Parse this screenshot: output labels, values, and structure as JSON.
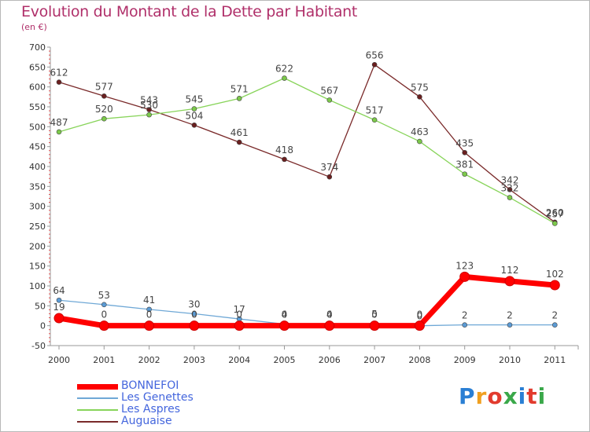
{
  "title": "Evolution du Montant de la Dette par Habitant",
  "subtitle": "(en €)",
  "logo": {
    "text": "Proxiti",
    "colors": [
      "#2a7fd4",
      "#f0a020",
      "#e23b2e",
      "#3aa84a",
      "#2a7fd4",
      "#e23b2e",
      "#3aa84a"
    ]
  },
  "chart_data": {
    "type": "line",
    "title": "Evolution du Montant de la Dette par Habitant",
    "subtitle": "(en €)",
    "xlabel": "",
    "ylabel": "",
    "x": [
      "2000",
      "2001",
      "2002",
      "2003",
      "2004",
      "2005",
      "2006",
      "2007",
      "2008",
      "2009",
      "2010",
      "2011"
    ],
    "ylim": [
      -50,
      700
    ],
    "yticks": [
      "-50",
      "0",
      "50",
      "100",
      "150",
      "200",
      "250",
      "300",
      "350",
      "400",
      "450",
      "500",
      "550",
      "600",
      "650",
      "700"
    ],
    "grid": false,
    "legend_position": "bottom-left",
    "series": [
      {
        "name": "BONNEFOI",
        "color": "#ff0000",
        "values": [
          19,
          0,
          0,
          0,
          0,
          0,
          0,
          0,
          0,
          123,
          112,
          102
        ]
      },
      {
        "name": "Les Genettes",
        "color": "#6fa8d6",
        "values": [
          64,
          53,
          41,
          30,
          17,
          4,
          4,
          5,
          0,
          2,
          2,
          2
        ]
      },
      {
        "name": "Les Aspres",
        "color": "#88d45a",
        "values": [
          487,
          520,
          530,
          545,
          571,
          622,
          567,
          517,
          463,
          381,
          322,
          257
        ]
      },
      {
        "name": "Auguaise",
        "color": "#7a2a2a",
        "values": [
          612,
          577,
          543,
          504,
          461,
          418,
          374,
          656,
          575,
          435,
          342,
          260
        ]
      }
    ]
  }
}
